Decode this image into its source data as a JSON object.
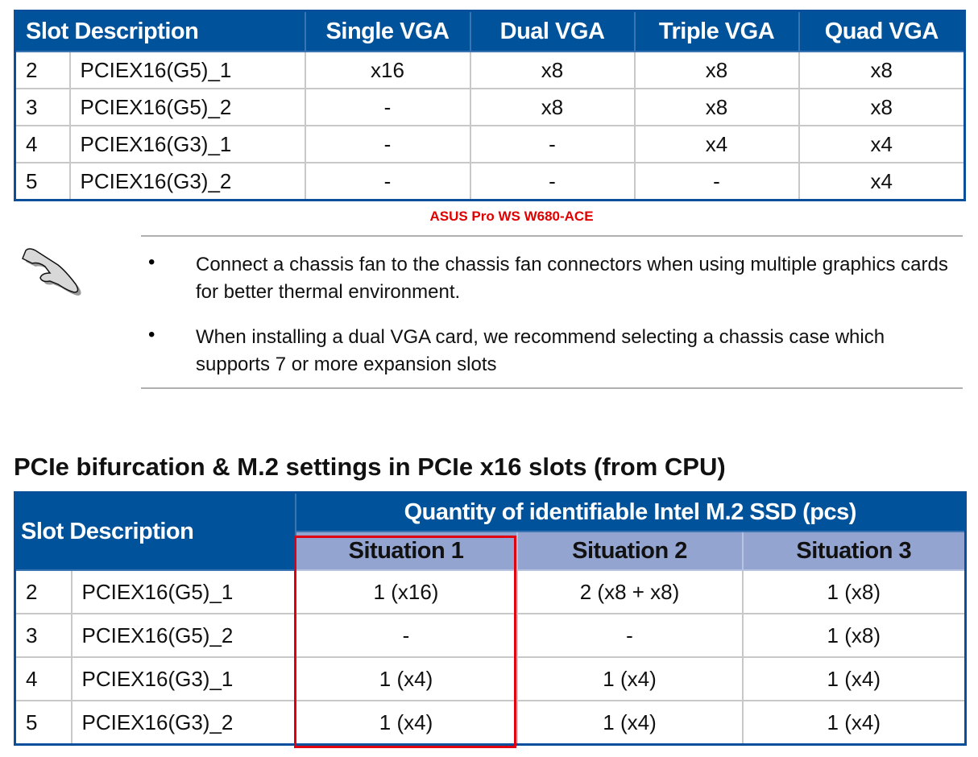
{
  "table1": {
    "headers": [
      "Slot Description",
      "Single VGA",
      "Dual VGA",
      "Triple VGA",
      "Quad VGA"
    ],
    "rows": [
      [
        "2",
        "PCIEX16(G5)_1",
        "x16",
        "x8",
        "x8",
        "x8"
      ],
      [
        "3",
        "PCIEX16(G5)_2",
        "-",
        "x8",
        "x8",
        "x8"
      ],
      [
        "4",
        "PCIEX16(G3)_1",
        "-",
        "-",
        "x4",
        "x4"
      ],
      [
        "5",
        "PCIEX16(G3)_2",
        "-",
        "-",
        "-",
        "x4"
      ]
    ]
  },
  "caption": "ASUS Pro WS W680-ACE",
  "notes": [
    "Connect a chassis fan to the chassis fan connectors when using multiple graphics cards for better thermal environment.",
    "When installing a dual VGA card, we recommend selecting a chassis case which supports 7 or more expansion slots"
  ],
  "section_title": "PCIe bifurcation & M.2 settings in PCIe x16 slots (from CPU)",
  "table2": {
    "slot_header": "Slot Description",
    "group_header": "Quantity of identifiable Intel M.2 SSD (pcs)",
    "situations": [
      "Situation 1",
      "Situation 2",
      "Situation 3"
    ],
    "rows": [
      [
        "2",
        "PCIEX16(G5)_1",
        "1 (x16)",
        "2 (x8 + x8)",
        "1 (x8)"
      ],
      [
        "3",
        "PCIEX16(G5)_2",
        "-",
        "-",
        "1 (x8)"
      ],
      [
        "4",
        "PCIEX16(G3)_1",
        "1 (x4)",
        "1 (x4)",
        "1 (x4)"
      ],
      [
        "5",
        "PCIEX16(G3)_2",
        "1 (x4)",
        "1 (x4)",
        "1 (x4)"
      ]
    ]
  },
  "colors": {
    "header_blue": "#00529b",
    "subheader": "#93a4d0",
    "highlight": "#e00010"
  }
}
